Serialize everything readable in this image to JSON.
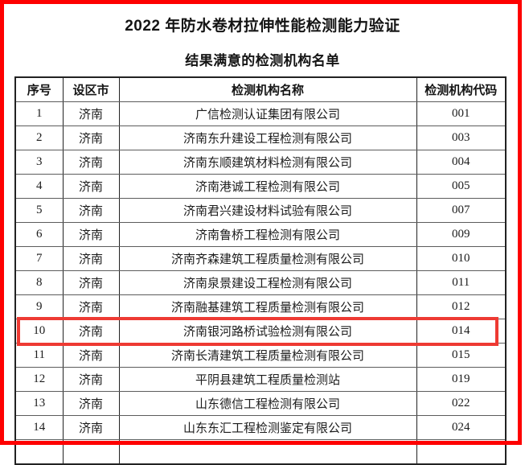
{
  "page": {
    "title": "2022 年防水卷材拉伸性能检测能力验证",
    "subtitle": "结果满意的检测机构名单"
  },
  "table": {
    "headers": [
      "序号",
      "设区市",
      "检测机构名称",
      "检测机构代码"
    ],
    "rows": [
      {
        "no": "1",
        "city": "济南",
        "name": "广信检测认证集团有限公司",
        "code": "001",
        "highlighted": false
      },
      {
        "no": "2",
        "city": "济南",
        "name": "济南东升建设工程检测有限公司",
        "code": "003",
        "highlighted": false
      },
      {
        "no": "3",
        "city": "济南",
        "name": "济南东顺建筑材料检测有限公司",
        "code": "004",
        "highlighted": false
      },
      {
        "no": "4",
        "city": "济南",
        "name": "济南港诚工程检测有限公司",
        "code": "005",
        "highlighted": false
      },
      {
        "no": "5",
        "city": "济南",
        "name": "济南君兴建设材料试验有限公司",
        "code": "007",
        "highlighted": false
      },
      {
        "no": "6",
        "city": "济南",
        "name": "济南鲁桥工程检测有限公司",
        "code": "009",
        "highlighted": false
      },
      {
        "no": "7",
        "city": "济南",
        "name": "济南齐森建筑工程质量检测有限公司",
        "code": "010",
        "highlighted": false
      },
      {
        "no": "8",
        "city": "济南",
        "name": "济南泉景建设工程检测有限公司",
        "code": "011",
        "highlighted": false
      },
      {
        "no": "9",
        "city": "济南",
        "name": "济南融基建筑工程质量检测有限公司",
        "code": "012",
        "highlighted": false
      },
      {
        "no": "10",
        "city": "济南",
        "name": "济南银河路桥试验检测有限公司",
        "code": "014",
        "highlighted": true
      },
      {
        "no": "11",
        "city": "济南",
        "name": "济南长清建筑工程质量检测有限公司",
        "code": "015",
        "highlighted": false
      },
      {
        "no": "12",
        "city": "济南",
        "name": "平阴县建筑工程质量检测站",
        "code": "019",
        "highlighted": false
      },
      {
        "no": "13",
        "city": "济南",
        "name": "山东德信工程检测有限公司",
        "code": "022",
        "highlighted": false
      },
      {
        "no": "14",
        "city": "济南",
        "name": "山东东汇工程检测鉴定有限公司",
        "code": "024",
        "highlighted": false
      }
    ]
  },
  "annotation": {
    "highlight_color": "#ee3a33",
    "frame_color": "#fe0000"
  }
}
